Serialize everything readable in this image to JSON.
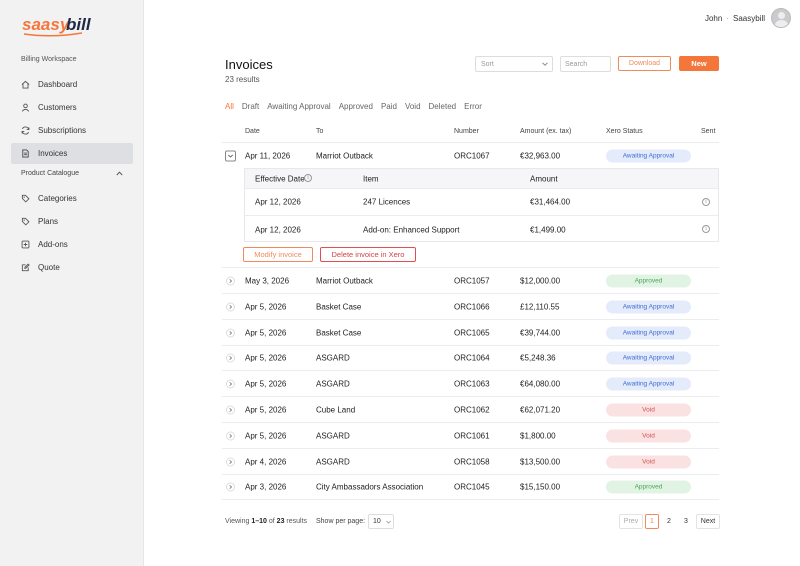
{
  "brand": {
    "name": "saasybill",
    "accent": "#f5763b"
  },
  "user": {
    "name": "John",
    "separator": "·",
    "org": "Saasybill"
  },
  "sidebar": {
    "workspace_label": "Billing Workspace",
    "items": [
      {
        "label": "Dashboard",
        "icon": "home-icon"
      },
      {
        "label": "Customers",
        "icon": "user-icon"
      },
      {
        "label": "Subscriptions",
        "icon": "refresh-icon"
      },
      {
        "label": "Invoices",
        "icon": "document-icon",
        "active": true
      }
    ],
    "catalogue_label": "Product Catalogue",
    "catalogue_items": [
      {
        "label": "Categories",
        "icon": "tag-icon"
      },
      {
        "label": "Plans",
        "icon": "tag-icon"
      },
      {
        "label": "Add-ons",
        "icon": "plus-box-icon"
      },
      {
        "label": "Quote",
        "icon": "edit-icon"
      }
    ]
  },
  "page": {
    "title": "Invoices",
    "subtitle": "23 results",
    "sort_placeholder": "Sort",
    "search_placeholder": "Search",
    "download_label": "Download",
    "new_label": "New"
  },
  "tabs": [
    "All",
    "Draft",
    "Awaiting Approval",
    "Approved",
    "Paid",
    "Void",
    "Deleted",
    "Error"
  ],
  "columns": {
    "date": "Date",
    "to": "To",
    "number": "Number",
    "amount": "Amount (ex. tax)",
    "status": "Xero Status",
    "sent": "Sent"
  },
  "expanded_invoice": {
    "date": "Apr 11, 2026",
    "to": "Marriot Outback",
    "number": "ORC1067",
    "amount": "€32,963.00",
    "status": "Awaiting Approval",
    "detail_columns": {
      "effective_date": "Effective Date",
      "item": "Item",
      "amount": "Amount"
    },
    "lines": [
      {
        "date": "Apr 12, 2026",
        "item": "247 Licences",
        "amount": "€31,464.00"
      },
      {
        "date": "Apr 12, 2026",
        "item": "Add-on: Enhanced Support",
        "amount": "€1,499.00"
      }
    ],
    "modify_label": "Modify invoice",
    "delete_label": "Delete invoice in Xero"
  },
  "rows": [
    {
      "date": "May 3, 2026",
      "to": "Marriot Outback",
      "number": "ORC1057",
      "amount": "$12,000.00",
      "status": "Approved",
      "kind": "appr"
    },
    {
      "date": "Apr 5, 2026",
      "to": "Basket Case",
      "number": "ORC1066",
      "amount": "£12,110.55",
      "status": "Awaiting Approval",
      "kind": "await"
    },
    {
      "date": "Apr 5, 2026",
      "to": "Basket Case",
      "number": "ORC1065",
      "amount": "€39,744.00",
      "status": "Awaiting Approval",
      "kind": "await"
    },
    {
      "date": "Apr 5, 2026",
      "to": "ASGARD",
      "number": "ORC1064",
      "amount": "€5,248.36",
      "status": "Awaiting Approval",
      "kind": "await"
    },
    {
      "date": "Apr 5, 2026",
      "to": "ASGARD",
      "number": "ORC1063",
      "amount": "€64,080.00",
      "status": "Awaiting Approval",
      "kind": "await"
    },
    {
      "date": "Apr 5, 2026",
      "to": "Cube Land",
      "number": "ORC1062",
      "amount": "€62,071.20",
      "status": "Void",
      "kind": "void"
    },
    {
      "date": "Apr 5, 2026",
      "to": "ASGARD",
      "number": "ORC1061",
      "amount": "$1,800.00",
      "status": "Void",
      "kind": "void"
    },
    {
      "date": "Apr 4, 2026",
      "to": "ASGARD",
      "number": "ORC1058",
      "amount": "$13,500.00",
      "status": "Void",
      "kind": "void"
    },
    {
      "date": "Apr 3, 2026",
      "to": "City Ambassadors Association",
      "number": "ORC1045",
      "amount": "$15,150.00",
      "status": "Approved",
      "kind": "appr"
    }
  ],
  "footer": {
    "viewing_prefix": "Viewing",
    "range": "1–10",
    "of": "of",
    "total": "23",
    "results": "results",
    "per_page_label": "Show per page:",
    "per_page": "10",
    "prev": "Prev",
    "pages": [
      "1",
      "2",
      "3"
    ],
    "next": "Next"
  }
}
